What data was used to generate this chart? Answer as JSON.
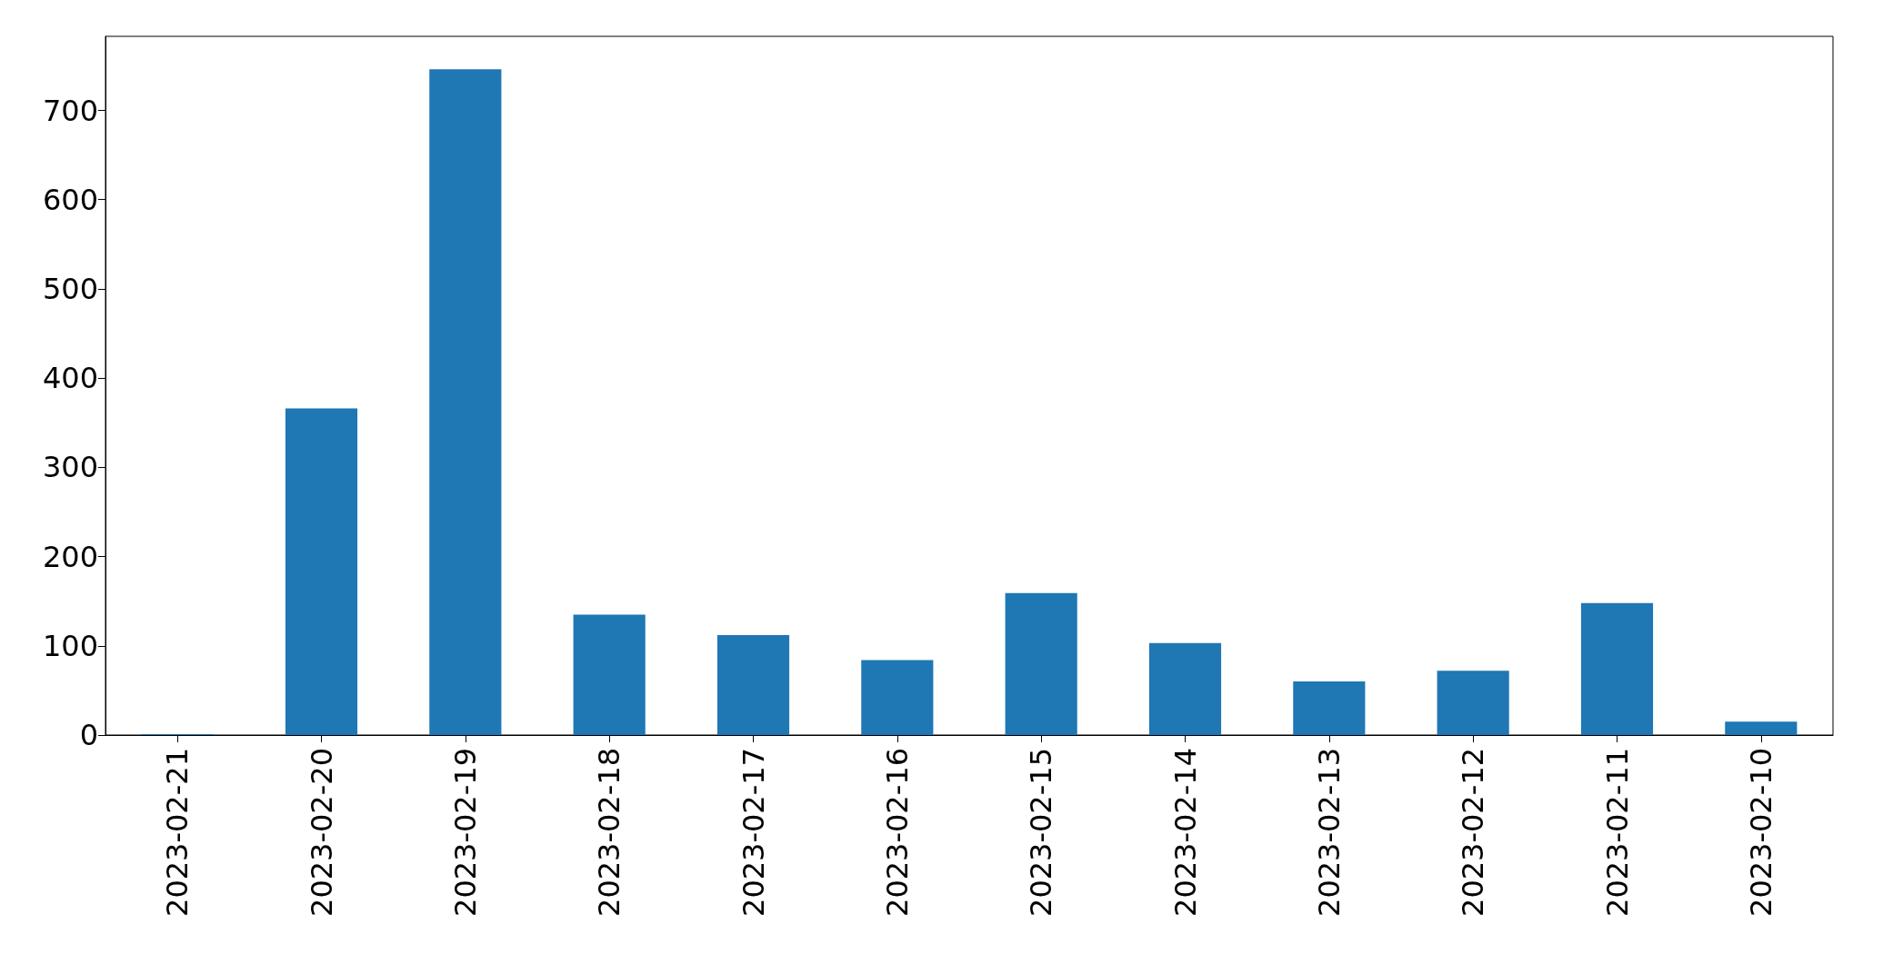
{
  "chart_data": {
    "type": "bar",
    "categories": [
      "2023-02-21",
      "2023-02-20",
      "2023-02-19",
      "2023-02-18",
      "2023-02-17",
      "2023-02-16",
      "2023-02-15",
      "2023-02-14",
      "2023-02-13",
      "2023-02-12",
      "2023-02-11",
      "2023-02-10"
    ],
    "values": [
      1,
      366,
      746,
      135,
      112,
      84,
      159,
      103,
      60,
      72,
      148,
      15
    ],
    "color": "#1f77b4",
    "ylim": [
      0,
      783
    ],
    "yticks": [
      0,
      100,
      200,
      300,
      400,
      500,
      600,
      700
    ],
    "grid": false
  }
}
